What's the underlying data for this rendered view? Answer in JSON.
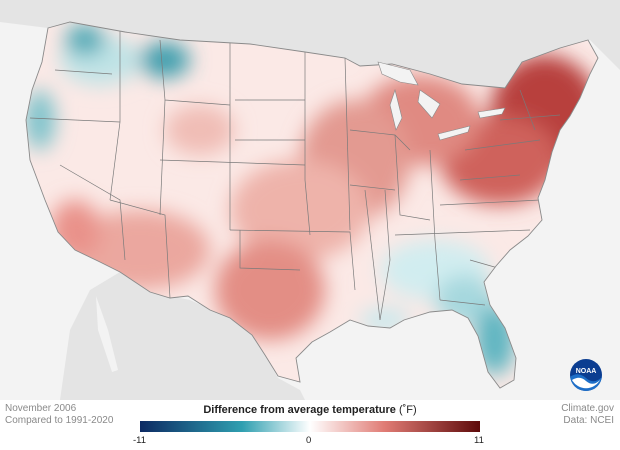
{
  "map": {
    "title": "Difference from average temperature",
    "unit": "(˚F)",
    "period": "November 2006",
    "baseline": "Compared to 1991-2020",
    "credit": "Climate.gov",
    "data_source": "Data: NCEI",
    "logo_text": "NOAA"
  },
  "legend": {
    "min_label": "-11",
    "mid_label": "0",
    "max_label": "11",
    "min": -11,
    "max": 11
  },
  "colors": {
    "cold_extreme": "#0c2a63",
    "cold": "#2f9fb0",
    "neutral": "#ffffff",
    "warm": "#e07b74",
    "warm_extreme": "#5e0a0a",
    "land_outside": "#e4e4e4",
    "water": "#f3f3f3",
    "state_border": "#7a7a7a"
  },
  "regions": [
    {
      "name": "Northeast",
      "anomaly": 8
    },
    {
      "name": "Great Lakes",
      "anomaly": 5
    },
    {
      "name": "Central Plains",
      "anomaly": 4
    },
    {
      "name": "Texas",
      "anomaly": 4
    },
    {
      "name": "Southwest",
      "anomaly": 3
    },
    {
      "name": "California",
      "anomaly": 3
    },
    {
      "name": "Pacific Northwest",
      "anomaly": -1
    },
    {
      "name": "Northern Rockies",
      "anomaly": -2
    },
    {
      "name": "Southeast",
      "anomaly": -1
    },
    {
      "name": "Florida",
      "anomaly": -3
    }
  ]
}
